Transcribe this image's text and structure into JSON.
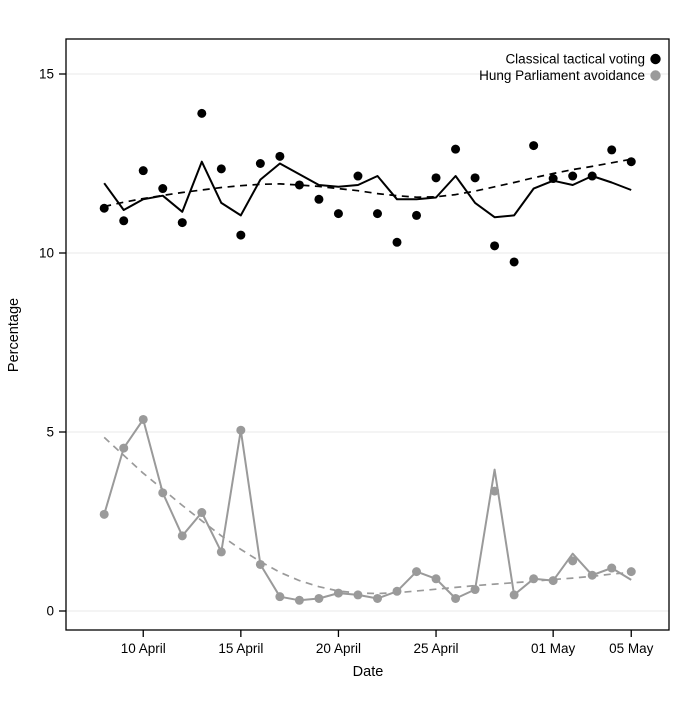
{
  "figure": {
    "background": "#ffffff",
    "box_color": "#000000",
    "grid_color": "#e9e9e9"
  },
  "chart_data": {
    "type": "line",
    "title": "",
    "xlabel": "Date",
    "ylabel": "Percentage",
    "ylim": [
      -0.5,
      16
    ],
    "yticks": [
      0,
      5,
      10,
      15
    ],
    "grid": "horizontal-only",
    "x_dates": [
      "08 Apr",
      "09 Apr",
      "10 Apr",
      "11 Apr",
      "12 Apr",
      "13 Apr",
      "14 Apr",
      "15 Apr",
      "16 Apr",
      "17 Apr",
      "18 Apr",
      "19 Apr",
      "20 Apr",
      "21 Apr",
      "22 Apr",
      "23 Apr",
      "24 Apr",
      "25 Apr",
      "26 Apr",
      "27 Apr",
      "28 Apr",
      "29 Apr",
      "30 Apr",
      "01 May",
      "02 May",
      "03 May",
      "04 May",
      "05 May"
    ],
    "xtick_labels": [
      "10 April",
      "15 April",
      "20 April",
      "25 April",
      "01 May",
      "05 May"
    ],
    "xtick_day_index": [
      2,
      7,
      12,
      17,
      23,
      27
    ],
    "legend": {
      "position": "top-right",
      "entries": [
        {
          "label": "Classical tactical voting",
          "color": "#000000"
        },
        {
          "label": "Hung Parliament avoidance",
          "color": "#9a9a9a"
        }
      ]
    },
    "series": [
      {
        "name": "classical-tactical-voting-points",
        "style": "points",
        "color": "#000000",
        "values": [
          11.25,
          10.9,
          12.3,
          11.8,
          10.85,
          13.9,
          12.35,
          10.5,
          12.5,
          12.7,
          11.9,
          11.5,
          11.1,
          12.15,
          11.1,
          10.3,
          11.05,
          12.1,
          12.9,
          12.1,
          10.2,
          9.75,
          13.0,
          12.08,
          12.15,
          12.15,
          12.88,
          12.55
        ]
      },
      {
        "name": "classical-tactical-voting-rolling-line",
        "style": "solid-line",
        "color": "#000000",
        "values": [
          11.95,
          11.2,
          11.5,
          11.6,
          11.15,
          12.55,
          11.4,
          11.05,
          12.05,
          12.5,
          12.2,
          11.9,
          11.85,
          11.9,
          12.15,
          11.5,
          11.5,
          11.55,
          12.15,
          11.4,
          11.0,
          11.05,
          11.8,
          12.02,
          11.9,
          12.15,
          11.97,
          11.76
        ]
      },
      {
        "name": "classical-tactical-voting-trend-dashed",
        "style": "dashed-line",
        "color": "#000000",
        "values": [
          11.3,
          11.42,
          11.52,
          11.61,
          11.69,
          11.76,
          11.83,
          11.88,
          11.92,
          11.93,
          11.9,
          11.86,
          11.8,
          11.74,
          11.66,
          11.6,
          11.56,
          11.57,
          11.63,
          11.73,
          11.85,
          11.97,
          12.1,
          12.22,
          12.33,
          12.42,
          12.52,
          12.62
        ]
      },
      {
        "name": "hung-parliament-avoidance-points",
        "style": "points",
        "color": "#9a9a9a",
        "values": [
          2.7,
          4.55,
          5.35,
          3.3,
          2.1,
          2.75,
          1.65,
          5.05,
          1.3,
          0.4,
          0.3,
          0.35,
          0.5,
          0.45,
          0.35,
          0.55,
          1.1,
          0.9,
          0.35,
          0.6,
          3.35,
          0.45,
          0.9,
          0.85,
          1.4,
          1.0,
          1.2,
          1.1
        ]
      },
      {
        "name": "hung-parliament-avoidance-line",
        "style": "solid-line",
        "color": "#9a9a9a",
        "values": [
          2.7,
          4.55,
          5.35,
          3.3,
          2.1,
          2.75,
          1.65,
          5.05,
          1.3,
          0.4,
          0.3,
          0.35,
          0.5,
          0.45,
          0.35,
          0.55,
          1.1,
          0.9,
          0.35,
          0.6,
          3.95,
          0.45,
          0.9,
          0.85,
          1.6,
          1.0,
          1.2,
          0.87
        ]
      },
      {
        "name": "hung-parliament-avoidance-trend-dashed",
        "style": "dashed-line",
        "color": "#9a9a9a",
        "values": [
          4.85,
          4.35,
          3.85,
          3.4,
          2.95,
          2.52,
          2.1,
          1.72,
          1.38,
          1.08,
          0.85,
          0.68,
          0.56,
          0.5,
          0.49,
          0.51,
          0.56,
          0.61,
          0.66,
          0.71,
          0.75,
          0.79,
          0.83,
          0.88,
          0.92,
          0.97,
          1.03,
          1.08
        ]
      }
    ]
  }
}
